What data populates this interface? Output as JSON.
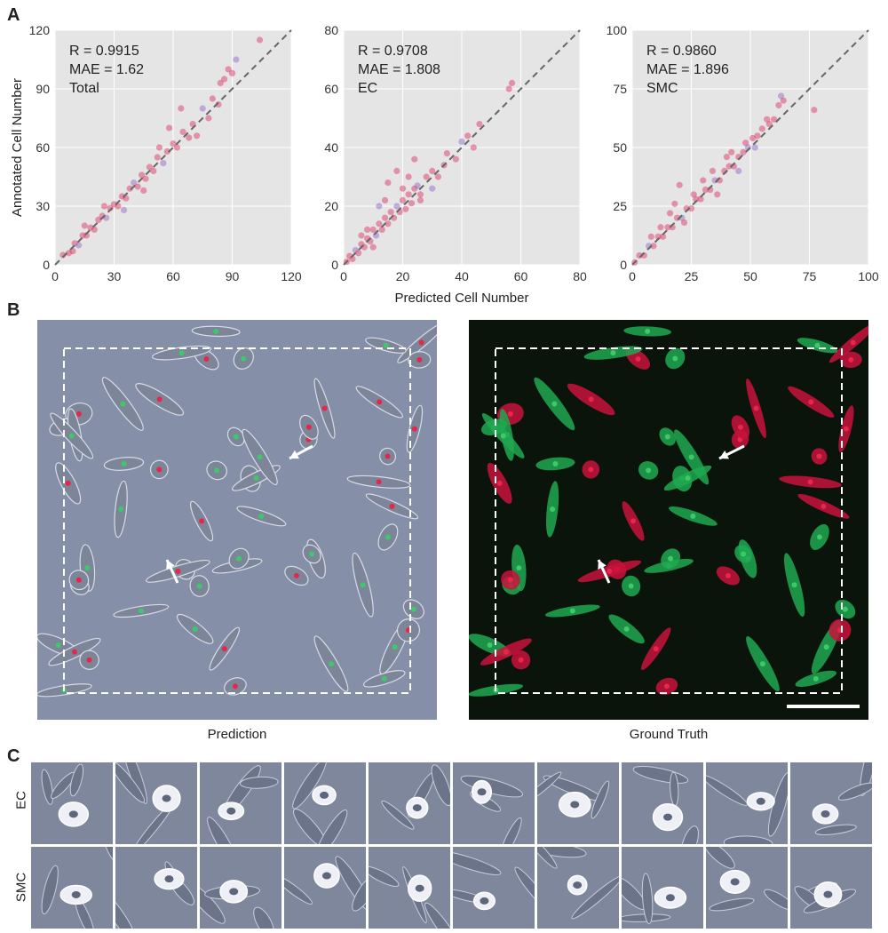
{
  "panels": {
    "a": "A",
    "b": "B",
    "c": "C"
  },
  "chart_data": [
    {
      "type": "scatter",
      "annotation": [
        "R = 0.9915",
        "MAE = 1.62",
        "Total"
      ],
      "xlim": [
        0,
        120
      ],
      "ylim": [
        0,
        120
      ],
      "xticks": [
        "0",
        "30",
        "60",
        "90",
        "120"
      ],
      "yticks": [
        "0",
        "30",
        "60",
        "90",
        "120"
      ],
      "ylabel": "Annotated Cell Number",
      "xlabel": "",
      "grid": true,
      "reference_line": "y = x (dashed)",
      "points": [
        [
          4,
          5
        ],
        [
          7,
          6
        ],
        [
          10,
          11
        ],
        [
          12,
          10
        ],
        [
          14,
          15
        ],
        [
          16,
          15
        ],
        [
          18,
          19
        ],
        [
          20,
          18
        ],
        [
          22,
          23
        ],
        [
          24,
          25
        ],
        [
          26,
          24
        ],
        [
          28,
          29
        ],
        [
          30,
          31
        ],
        [
          32,
          30
        ],
        [
          34,
          35
        ],
        [
          36,
          34
        ],
        [
          38,
          39
        ],
        [
          40,
          42
        ],
        [
          42,
          40
        ],
        [
          44,
          46
        ],
        [
          46,
          44
        ],
        [
          48,
          50
        ],
        [
          50,
          48
        ],
        [
          52,
          55
        ],
        [
          55,
          52
        ],
        [
          57,
          58
        ],
        [
          60,
          62
        ],
        [
          62,
          60
        ],
        [
          65,
          68
        ],
        [
          68,
          65
        ],
        [
          70,
          72
        ],
        [
          75,
          80
        ],
        [
          78,
          75
        ],
        [
          80,
          85
        ],
        [
          83,
          82
        ],
        [
          86,
          95
        ],
        [
          88,
          100
        ],
        [
          90,
          98
        ],
        [
          92,
          105
        ],
        [
          104,
          115
        ],
        [
          84,
          93
        ],
        [
          72,
          66
        ],
        [
          64,
          80
        ],
        [
          58,
          70
        ],
        [
          53,
          60
        ],
        [
          35,
          28
        ],
        [
          25,
          30
        ],
        [
          45,
          38
        ],
        [
          15,
          20
        ],
        [
          9,
          7
        ]
      ]
    },
    {
      "type": "scatter",
      "annotation": [
        "R = 0.9708",
        "MAE = 1.808",
        "EC"
      ],
      "xlim": [
        0,
        80
      ],
      "ylim": [
        0,
        80
      ],
      "xticks": [
        "0",
        "20",
        "40",
        "60",
        "80"
      ],
      "yticks": [
        "0",
        "20",
        "40",
        "60",
        "80"
      ],
      "ylabel": "",
      "xlabel": "Predicted Cell Number",
      "grid": true,
      "reference_line": "y = x (dashed)",
      "points": [
        [
          1,
          1
        ],
        [
          2,
          3
        ],
        [
          3,
          2
        ],
        [
          4,
          5
        ],
        [
          5,
          4
        ],
        [
          6,
          7
        ],
        [
          7,
          6
        ],
        [
          8,
          9
        ],
        [
          9,
          8
        ],
        [
          10,
          12
        ],
        [
          11,
          10
        ],
        [
          12,
          14
        ],
        [
          13,
          12
        ],
        [
          14,
          16
        ],
        [
          15,
          14
        ],
        [
          16,
          18
        ],
        [
          17,
          16
        ],
        [
          18,
          20
        ],
        [
          19,
          18
        ],
        [
          20,
          22
        ],
        [
          21,
          19
        ],
        [
          22,
          24
        ],
        [
          23,
          21
        ],
        [
          24,
          26
        ],
        [
          25,
          27
        ],
        [
          26,
          24
        ],
        [
          28,
          30
        ],
        [
          30,
          32
        ],
        [
          32,
          30
        ],
        [
          35,
          38
        ],
        [
          38,
          36
        ],
        [
          40,
          42
        ],
        [
          42,
          44
        ],
        [
          44,
          40
        ],
        [
          46,
          48
        ],
        [
          15,
          28
        ],
        [
          18,
          32
        ],
        [
          20,
          26
        ],
        [
          12,
          20
        ],
        [
          24,
          36
        ],
        [
          56,
          60
        ],
        [
          57,
          62
        ],
        [
          10,
          6
        ],
        [
          6,
          10
        ],
        [
          26,
          22
        ],
        [
          30,
          26
        ],
        [
          14,
          22
        ],
        [
          22,
          30
        ],
        [
          34,
          34
        ],
        [
          8,
          12
        ]
      ]
    },
    {
      "type": "scatter",
      "annotation": [
        "R = 0.9860",
        "MAE = 1.896",
        "SMC"
      ],
      "xlim": [
        0,
        100
      ],
      "ylim": [
        0,
        100
      ],
      "xticks": [
        "0",
        "25",
        "50",
        "75",
        "100"
      ],
      "yticks": [
        "0",
        "25",
        "50",
        "75",
        "100"
      ],
      "ylabel": "",
      "xlabel": "",
      "grid": true,
      "reference_line": "y = x (dashed)",
      "points": [
        [
          1,
          1
        ],
        [
          3,
          4
        ],
        [
          5,
          4
        ],
        [
          7,
          8
        ],
        [
          9,
          8
        ],
        [
          11,
          12
        ],
        [
          13,
          12
        ],
        [
          15,
          16
        ],
        [
          17,
          16
        ],
        [
          19,
          20
        ],
        [
          21,
          20
        ],
        [
          23,
          24
        ],
        [
          25,
          24
        ],
        [
          27,
          28
        ],
        [
          29,
          28
        ],
        [
          31,
          32
        ],
        [
          33,
          32
        ],
        [
          35,
          36
        ],
        [
          37,
          36
        ],
        [
          39,
          40
        ],
        [
          41,
          42
        ],
        [
          43,
          42
        ],
        [
          45,
          46
        ],
        [
          47,
          48
        ],
        [
          49,
          50
        ],
        [
          51,
          54
        ],
        [
          53,
          55
        ],
        [
          55,
          58
        ],
        [
          58,
          60
        ],
        [
          60,
          62
        ],
        [
          62,
          68
        ],
        [
          63,
          72
        ],
        [
          64,
          70
        ],
        [
          77,
          66
        ],
        [
          20,
          34
        ],
        [
          18,
          26
        ],
        [
          30,
          36
        ],
        [
          40,
          46
        ],
        [
          45,
          40
        ],
        [
          36,
          30
        ],
        [
          26,
          30
        ],
        [
          12,
          16
        ],
        [
          8,
          12
        ],
        [
          22,
          18
        ],
        [
          48,
          52
        ],
        [
          52,
          50
        ],
        [
          57,
          62
        ],
        [
          34,
          40
        ],
        [
          42,
          48
        ],
        [
          16,
          22
        ]
      ]
    }
  ],
  "panel_b": {
    "left_caption": "Prediction",
    "right_caption": "Ground Truth"
  },
  "panel_c": {
    "row_labels": [
      "EC",
      "SMC"
    ]
  },
  "colors": {
    "point": "#dc2a5a",
    "point_alt": "#8b5fc0",
    "plot_bg": "#e5e5e5",
    "phase_bg": "#868fa8",
    "fluor_bg": "#0b140b",
    "ec_green": "#3ec86a",
    "smc_red": "#e8254a"
  }
}
